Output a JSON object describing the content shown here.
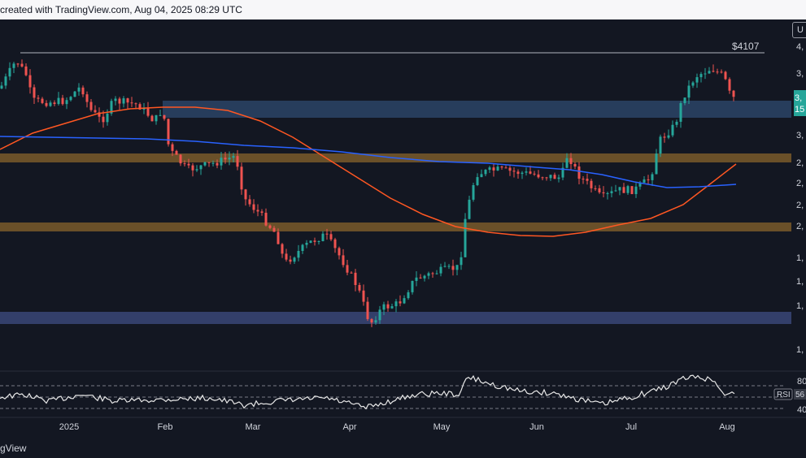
{
  "header": {
    "caption": "created with TradingView.com, Aug 04, 2025 08:29 UTC"
  },
  "footer": {
    "brand": "gView"
  },
  "toolbar": {
    "scale_button": "U"
  },
  "colors": {
    "background": "#131722",
    "up": "#26a69a",
    "down": "#ef5350",
    "ma_orange": "#ff5722",
    "ma_blue": "#2962ff",
    "rsi_line": "#ffffff",
    "zone_blue": "#2c4466",
    "zone_orange": "#7a5a2a",
    "zone_purple": "#3a4677"
  },
  "chart_data": {
    "type": "candlestick",
    "x_ticks": [
      "2025",
      "Feb",
      "Mar",
      "Apr",
      "May",
      "Jun",
      "Jul",
      "Aug"
    ],
    "y_tick_labels_partial": [
      "4,",
      "3,",
      "3,",
      "2,",
      "2,",
      "2,",
      "2,",
      "1,",
      "1,",
      "1,",
      "1,"
    ],
    "annotations": {
      "high_level_label": "$4107",
      "price_label": "3,",
      "countdown_label": "15"
    },
    "zones": [
      {
        "name": "upper supply zone",
        "color": "blue"
      },
      {
        "name": "middle zone",
        "color": "orange"
      },
      {
        "name": "lower zone",
        "color": "orange"
      },
      {
        "name": "bottom demand zone",
        "color": "purple"
      }
    ],
    "moving_averages": [
      {
        "color": "orange"
      },
      {
        "color": "blue"
      }
    ],
    "rsi": {
      "label": "RSI",
      "value_label": "56",
      "levels": [
        "80",
        "40"
      ],
      "current": 56
    }
  }
}
